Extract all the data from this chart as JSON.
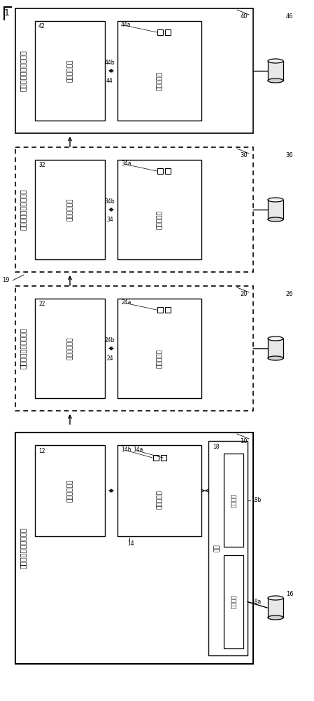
{
  "bg_color": "#ffffff",
  "fig_w": 449,
  "fig_h": 1000,
  "font_cn": 7.0,
  "font_label": 6.0,
  "font_small": 5.5,
  "piles": [
    {
      "id": "p4",
      "outer_label": "40",
      "title": "第四充电桩（从装置）",
      "inner_label": "42",
      "comm_text": "第四通信单元",
      "comm_num": "44",
      "conn_a": "44b",
      "conn_b": "44a",
      "ctrl_text": "第四控制器",
      "vehicle_num": "46",
      "dashed": false,
      "arrow_up": true
    },
    {
      "id": "p3",
      "outer_label": "30",
      "title": "第三充电桩（从装置）",
      "inner_label": "32",
      "comm_text": "第三通信单元",
      "comm_num": "34",
      "conn_a": "34b",
      "conn_b": "34a",
      "ctrl_text": "第三控制器",
      "vehicle_num": "36",
      "dashed": true,
      "arrow_up": true,
      "side_label": "19"
    },
    {
      "id": "p2",
      "outer_label": "20",
      "title": "第二充电桩（从装置）",
      "inner_label": "22",
      "comm_text": "第二通信单元",
      "comm_num": "24",
      "conn_a": "24b",
      "conn_b": "24a",
      "ctrl_text": "第二控制器",
      "vehicle_num": "26",
      "dashed": true,
      "arrow_up": true
    }
  ],
  "master": {
    "outer_label": "10",
    "title": "第一充电桩（主装置）",
    "inner_label": "12",
    "comm_text": "第一通信单元",
    "ctrl_num": "14",
    "conn_a": "14b",
    "conn_b": "14a",
    "ctrl_text": "第一控制器",
    "intf_num": "18",
    "intf_text": "接口",
    "display_text": "显示单元",
    "display_num": "18b",
    "input_text": "输入单元",
    "input_num": "18a",
    "vehicle_num": "16"
  }
}
